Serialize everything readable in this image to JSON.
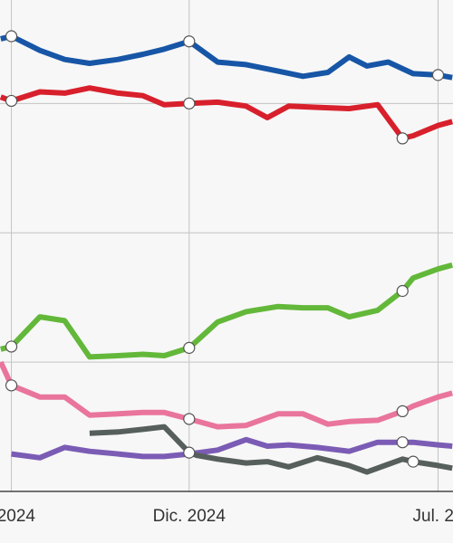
{
  "chart_data": {
    "type": "line",
    "title": "",
    "xlabel": "",
    "ylabel": "",
    "x_ticks": [
      {
        "x": 0,
        "label": ". 2024"
      },
      {
        "x": 5,
        "label": "Dic. 2024"
      },
      {
        "x": 12,
        "label": "Jul. 20"
      }
    ],
    "xlim": [
      -0.32,
      12.42
    ],
    "ylim": [
      0,
      38
    ],
    "grid_y": [
      0,
      10,
      20,
      30
    ],
    "grid": true,
    "legend": "none",
    "series": [
      {
        "color": "#1756a6",
        "points": [
          [
            -0.3,
            35
          ],
          [
            0,
            35.2
          ],
          [
            0.8,
            34.1
          ],
          [
            1.5,
            33.4
          ],
          [
            2.2,
            33.1
          ],
          [
            3.0,
            33.4
          ],
          [
            3.7,
            33.8
          ],
          [
            4.3,
            34.2
          ],
          [
            5,
            34.8
          ],
          [
            5.8,
            33.2
          ],
          [
            6.6,
            33
          ],
          [
            7.5,
            32.5
          ],
          [
            8.2,
            32.1
          ],
          [
            8.9,
            32.4
          ],
          [
            9.5,
            33.6
          ],
          [
            10,
            32.9
          ],
          [
            10.6,
            33.2
          ],
          [
            11.3,
            32.3
          ],
          [
            12,
            32.2
          ],
          [
            12.4,
            32.0
          ]
        ],
        "markers": [
          0,
          5,
          12
        ]
      },
      {
        "color": "#d8202c",
        "points": [
          [
            -0.3,
            30.5
          ],
          [
            0,
            30.2
          ],
          [
            0.8,
            30.9
          ],
          [
            1.5,
            30.8
          ],
          [
            2.2,
            31.2
          ],
          [
            3.0,
            30.8
          ],
          [
            3.7,
            30.6
          ],
          [
            4.3,
            29.9
          ],
          [
            5,
            30
          ],
          [
            5.8,
            30.1
          ],
          [
            6.6,
            29.8
          ],
          [
            7.2,
            28.9
          ],
          [
            7.8,
            29.8
          ],
          [
            8.6,
            29.7
          ],
          [
            9.5,
            29.6
          ],
          [
            10.3,
            29.9
          ],
          [
            11,
            27.3
          ],
          [
            11.3,
            27.5
          ],
          [
            12,
            28.3
          ],
          [
            12.4,
            28.6
          ]
        ],
        "markers": [
          0,
          5,
          11
        ]
      },
      {
        "color": "#63b83a",
        "points": [
          [
            -0.3,
            11
          ],
          [
            0,
            11.2
          ],
          [
            0.8,
            13.5
          ],
          [
            1.5,
            13.2
          ],
          [
            2.2,
            10.4
          ],
          [
            3.0,
            10.5
          ],
          [
            3.7,
            10.6
          ],
          [
            4.3,
            10.5
          ],
          [
            5,
            11.1
          ],
          [
            5.8,
            13.1
          ],
          [
            6.6,
            13.9
          ],
          [
            7.5,
            14.3
          ],
          [
            8.2,
            14.2
          ],
          [
            8.9,
            14.2
          ],
          [
            9.5,
            13.5
          ],
          [
            10.3,
            14
          ],
          [
            11,
            15.5
          ],
          [
            11.3,
            16.5
          ],
          [
            12,
            17.2
          ],
          [
            12.4,
            17.5
          ]
        ],
        "markers": [
          0,
          5,
          11
        ]
      },
      {
        "color": "#e9759c",
        "points": [
          [
            -0.3,
            10
          ],
          [
            0,
            8.2
          ],
          [
            0.8,
            7.3
          ],
          [
            1.5,
            7.3
          ],
          [
            2.2,
            5.9
          ],
          [
            3.0,
            6.0
          ],
          [
            3.7,
            6.1
          ],
          [
            4.3,
            6.1
          ],
          [
            5,
            5.6
          ],
          [
            5.8,
            5.0
          ],
          [
            6.6,
            5.1
          ],
          [
            7.5,
            6.0
          ],
          [
            8.2,
            6.0
          ],
          [
            8.9,
            5.2
          ],
          [
            9.5,
            5.4
          ],
          [
            10.3,
            5.5
          ],
          [
            11,
            6.2
          ],
          [
            11.3,
            6.6
          ],
          [
            12,
            7.3
          ],
          [
            12.4,
            7.6
          ]
        ],
        "markers": [
          0,
          5,
          11
        ]
      },
      {
        "color": "#7b5cb5",
        "points": [
          [
            0,
            2.9
          ],
          [
            0.8,
            2.6
          ],
          [
            1.5,
            3.4
          ],
          [
            2.2,
            3.1
          ],
          [
            3.0,
            2.9
          ],
          [
            3.7,
            2.7
          ],
          [
            4.3,
            2.7
          ],
          [
            5,
            2.9
          ],
          [
            5.8,
            3.2
          ],
          [
            6.6,
            4.0
          ],
          [
            7.2,
            3.5
          ],
          [
            7.8,
            3.6
          ],
          [
            8.6,
            3.4
          ],
          [
            9.5,
            3.1
          ],
          [
            10.3,
            3.8
          ],
          [
            11,
            3.8
          ],
          [
            11.3,
            3.8
          ],
          [
            12,
            3.6
          ],
          [
            12.4,
            3.5
          ]
        ],
        "markers": [
          11
        ]
      },
      {
        "color": "#575f5c",
        "points": [
          [
            2.2,
            4.5
          ],
          [
            3.0,
            4.6
          ],
          [
            3.7,
            4.8
          ],
          [
            4.3,
            5.0
          ],
          [
            5,
            3.0
          ],
          [
            5.2,
            2.8
          ],
          [
            5.8,
            2.5
          ],
          [
            6.6,
            2.2
          ],
          [
            7.2,
            2.3
          ],
          [
            7.8,
            1.9
          ],
          [
            8.6,
            2.6
          ],
          [
            9.5,
            2.0
          ],
          [
            10,
            1.5
          ],
          [
            10.6,
            2.1
          ],
          [
            11,
            2.5
          ],
          [
            11.3,
            2.3
          ],
          [
            12,
            2.0
          ],
          [
            12.4,
            1.8
          ]
        ],
        "markers": [
          5,
          11.3
        ]
      }
    ]
  }
}
